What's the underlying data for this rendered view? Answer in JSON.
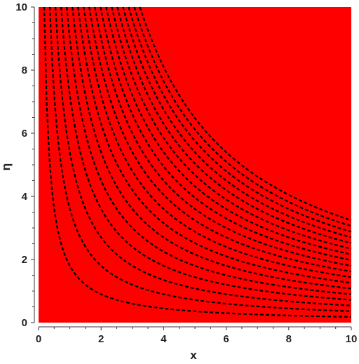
{
  "chart_data": {
    "type": "heatmap",
    "title": "",
    "xlabel": "x",
    "ylabel": "η",
    "xlim": [
      0,
      10
    ],
    "ylim": [
      0,
      10
    ],
    "xticks": [
      0,
      2,
      4,
      6,
      8,
      10
    ],
    "yticks": [
      0,
      2,
      4,
      6,
      8,
      10
    ],
    "grid": false,
    "legend": "none",
    "region_function": "x·η",
    "region_levels": [
      0,
      0.9,
      1.8,
      2.7,
      3.6,
      4.5,
      5.4,
      6.3,
      7.2,
      8.1,
      9.0,
      9.9,
      10.8,
      11.7,
      12.6,
      13.5,
      14.4,
      15.3,
      16.2,
      17.1,
      18.0,
      18.9,
      19.8,
      20.7,
      21.6,
      22.5,
      23.4,
      24.3,
      25.2,
      26.1,
      27.0,
      27.9,
      28.8,
      29.7,
      30.6,
      31.5,
      32.4,
      33.3,
      34.2,
      35.1,
      36.0,
      100
    ],
    "region_colors": [
      "#ff0000",
      "#00ff40",
      "#7f00ff",
      "#ff0000",
      "#00ff40",
      "#ff0000",
      "#00ff40",
      "#7f00ff",
      "#ff0000",
      "#00ff40",
      "#00ff40"
    ],
    "dashed_contours": [
      1.8,
      3.6,
      5.4,
      7.2,
      9.0,
      10.8,
      12.6,
      14.4,
      16.2,
      18.0,
      19.8,
      21.6,
      23.4,
      25.2,
      27.0,
      28.8,
      30.6,
      32.4
    ],
    "colors": {
      "red": "#ff0000",
      "green": "#00ff40",
      "purple": "#7f00ff",
      "contour": "#000000"
    }
  }
}
